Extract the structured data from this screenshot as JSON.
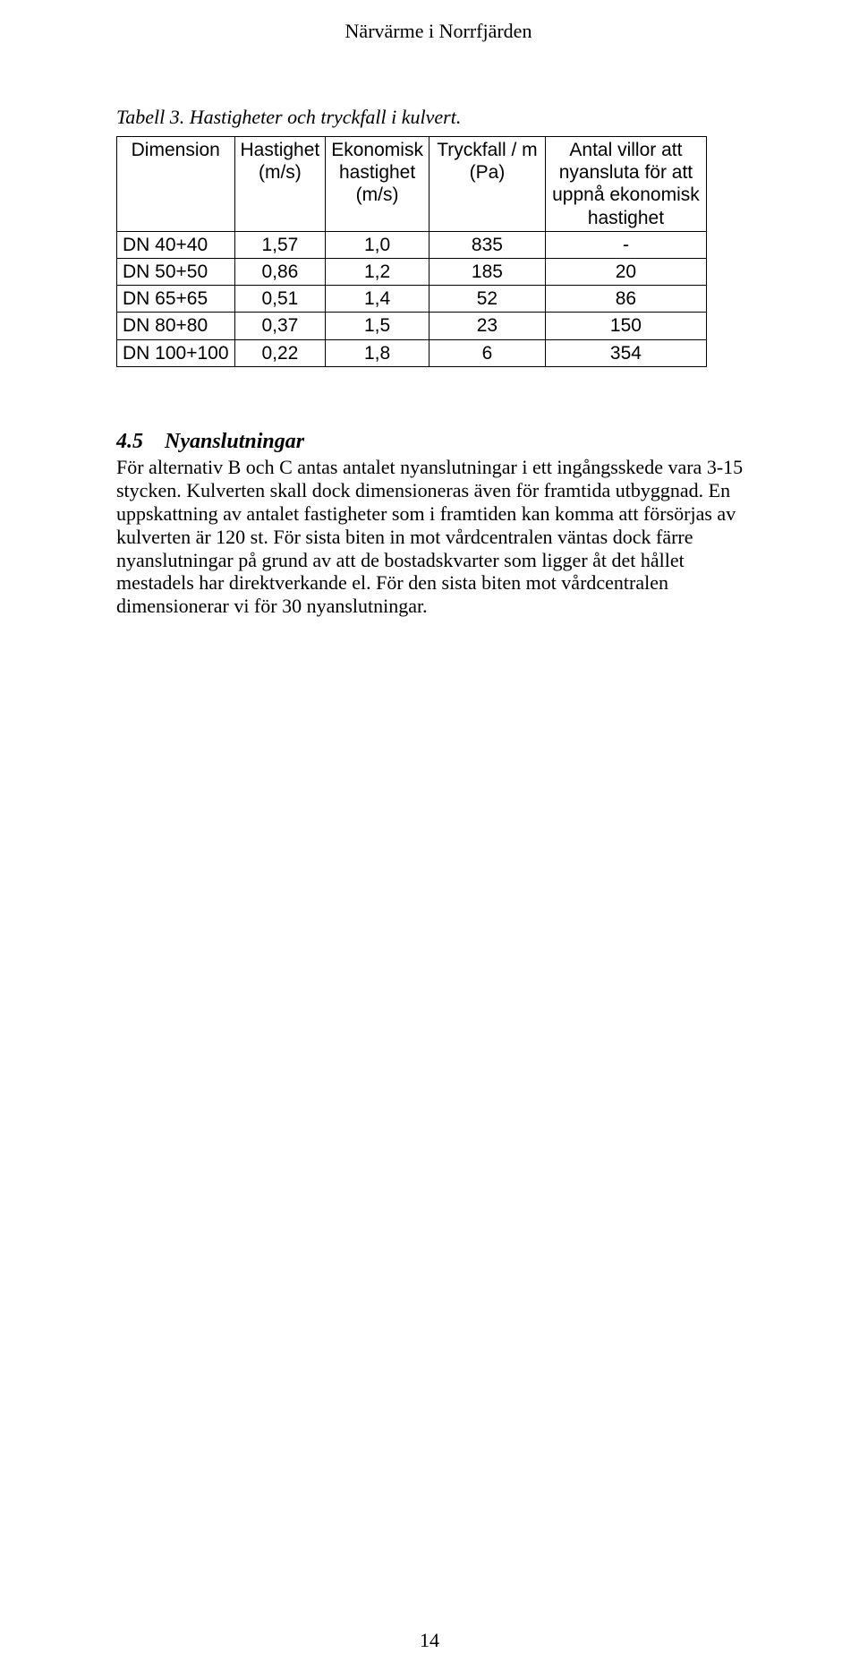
{
  "header": "Närvärme i Norrfjärden",
  "caption": "Tabell 3. Hastigheter och tryckfall i kulvert.",
  "table": {
    "columns": [
      "Dimension",
      "Hastighet (m/s)",
      "Ekonomisk hastighet (m/s)",
      "Tryckfall / m (Pa)",
      "Antal villor att nyansluta för att uppnå ekonomisk hastighet"
    ],
    "rows": [
      {
        "dim": "DN 40+40",
        "hast": "1,57",
        "ekon": "1,0",
        "tryck": "835",
        "antal": "-"
      },
      {
        "dim": "DN 50+50",
        "hast": "0,86",
        "ekon": "1,2",
        "tryck": "185",
        "antal": "20"
      },
      {
        "dim": "DN 65+65",
        "hast": "0,51",
        "ekon": "1,4",
        "tryck": "52",
        "antal": "86"
      },
      {
        "dim": "DN 80+80",
        "hast": "0,37",
        "ekon": "1,5",
        "tryck": "23",
        "antal": "150"
      },
      {
        "dim": "DN 100+100",
        "hast": "0,22",
        "ekon": "1,8",
        "tryck": "6",
        "antal": "354"
      }
    ]
  },
  "section": {
    "number": "4.5",
    "title": "Nyanslutningar",
    "body": "För alternativ B och C antas antalet nyanslutningar i ett ingångsskede vara 3-15 stycken. Kulverten skall dock dimensioneras även för framtida utbyggnad. En uppskattning av antalet fastigheter som i framtiden kan komma att försörjas av kulverten är 120 st. För sista biten in mot vårdcentralen väntas dock färre nyanslutningar på grund av att de bostadskvarter som ligger åt det hållet mestadels har direktverkande el. För den sista biten mot vårdcentralen dimensionerar vi för 30 nyanslutningar."
  },
  "page_number": "14"
}
